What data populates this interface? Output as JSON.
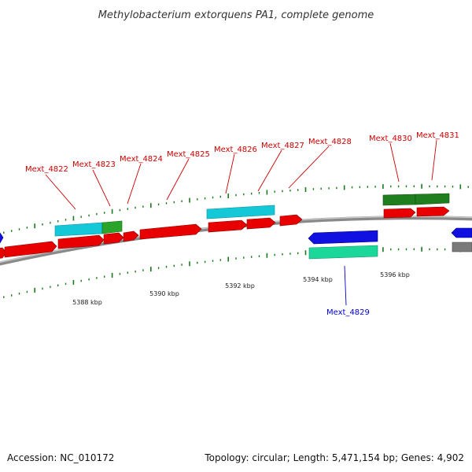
{
  "title": "Methylobacterium extorquens PA1, complete genome",
  "footer": {
    "accession": "Accession: NC_010172",
    "summary": "Topology: circular; Length: 5,471,154 bp; Genes: 4,902"
  },
  "colors": {
    "backbone": "#8a8a8a",
    "forward_gene": "#e80000",
    "reverse_gene": "#1010e0",
    "label_red": "#cc0000",
    "label_blue": "#0000cc",
    "ticks": "#1a7a1a",
    "cyan": "#15c8d8",
    "green": "#2aa42a",
    "dark_green": "#1f7f1f",
    "mint": "#1bd89a",
    "gray": "#7a7a7a"
  },
  "scale": {
    "labels": [
      "5388 kbp",
      "5390 kbp",
      "5392 kbp",
      "5394 kbp",
      "5396 kbp"
    ]
  },
  "gene_labels": [
    {
      "id": "Mext_4822",
      "strand": "forward"
    },
    {
      "id": "Mext_4823",
      "strand": "forward"
    },
    {
      "id": "Mext_4824",
      "strand": "forward"
    },
    {
      "id": "Mext_4825",
      "strand": "forward"
    },
    {
      "id": "Mext_4826",
      "strand": "forward"
    },
    {
      "id": "Mext_4827",
      "strand": "forward"
    },
    {
      "id": "Mext_4828",
      "strand": "forward"
    },
    {
      "id": "Mext_4830",
      "strand": "forward"
    },
    {
      "id": "Mext_4831",
      "strand": "forward"
    },
    {
      "id": "Mext_4829",
      "strand": "reverse"
    }
  ]
}
